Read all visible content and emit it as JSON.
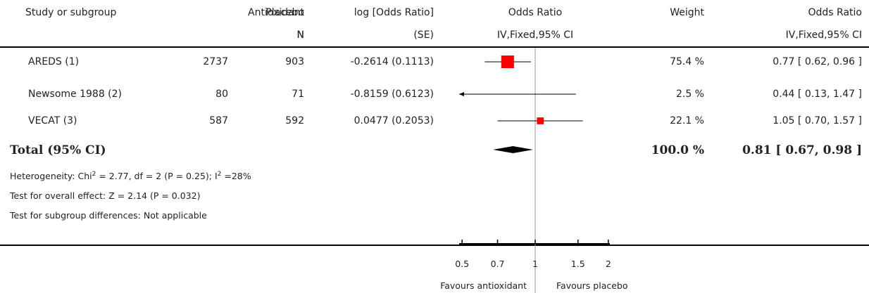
{
  "headers": {
    "study": "Study or subgroup",
    "antioxidant": "Antioxidant",
    "antioxidant_sub": "N",
    "placebo": "Placebo",
    "placebo_sub": "N",
    "logor": "log [Odds Ratio]",
    "logor_sub": "(SE)",
    "or_plot": "Odds Ratio",
    "or_plot_sub": "IV,Fixed,95% CI",
    "weight": "Weight",
    "or": "Odds Ratio",
    "or_sub": "IV,Fixed,95% CI"
  },
  "studies": [
    {
      "name": "AREDS (1)",
      "antioxidant_n": "2737",
      "placebo_n": "903",
      "logor_se": "-0.2614 (0.1113)",
      "weight": "75.4 %",
      "or_ci": "0.77 [ 0.62, 0.96 ]"
    },
    {
      "name": "Newsome 1988 (2)",
      "antioxidant_n": "80",
      "placebo_n": "71",
      "logor_se": "-0.8159 (0.6123)",
      "weight": "2.5 %",
      "or_ci": "0.44 [ 0.13, 1.47 ]"
    },
    {
      "name": "VECAT (3)",
      "antioxidant_n": "587",
      "placebo_n": "592",
      "logor_se": "0.0477 (0.2053)",
      "weight": "22.1 %",
      "or_ci": "1.05 [ 0.70, 1.57 ]"
    }
  ],
  "total": {
    "label": "Total (95% CI)",
    "weight": "100.0 %",
    "or_ci": "0.81 [ 0.67, 0.98 ]"
  },
  "footer": {
    "heterogeneity_a": "Heterogeneity: Chi",
    "heterogeneity_b": " = 2.77, df = 2 (P = 0.25); I",
    "heterogeneity_c": " =28%",
    "sup2": "2",
    "overall": "Test for overall effect: Z = 2.14 (P = 0.032)",
    "subgroup": "Test for subgroup differences: Not applicable"
  },
  "axis": {
    "ticks": [
      "0.5",
      "0.7",
      "1",
      "1.5",
      "2"
    ],
    "favours_left": "Favours antioxidant",
    "favours_right": "Favours placebo"
  },
  "chart_data": {
    "type": "scatter",
    "scale": "log",
    "xlim": [
      0.5,
      2
    ],
    "reference_line": 1,
    "colors": {
      "marker": "#ff0000",
      "diamond": "#000000"
    },
    "x_ticks": [
      0.5,
      0.7,
      1,
      1.5,
      2
    ],
    "points": [
      {
        "study": "AREDS (1)",
        "or": 0.77,
        "lower": 0.62,
        "upper": 0.96,
        "weight": 75.4
      },
      {
        "study": "Newsome 1988 (2)",
        "or": 0.44,
        "lower": 0.13,
        "upper": 1.47,
        "weight": 2.5
      },
      {
        "study": "VECAT (3)",
        "or": 1.05,
        "lower": 0.7,
        "upper": 1.57,
        "weight": 22.1
      }
    ],
    "pooled": {
      "or": 0.81,
      "lower": 0.67,
      "upper": 0.98
    }
  }
}
